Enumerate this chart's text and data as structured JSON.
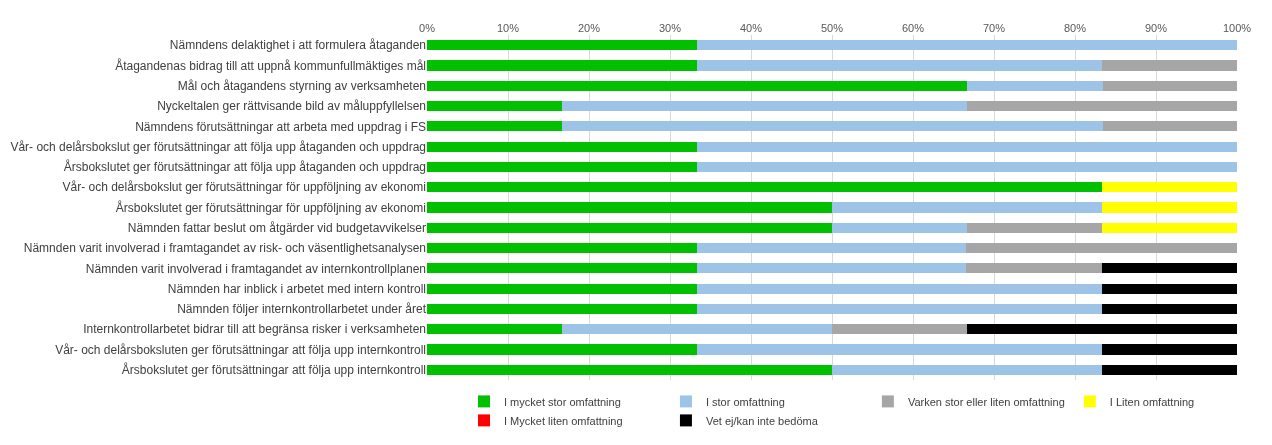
{
  "chart_data": {
    "type": "bar",
    "orientation": "horizontal",
    "stacked": true,
    "categories": [
      "Nämndens delaktighet i att formulera åtaganden",
      "Åtagandenas bidrag till att uppnå kommunfullmäktiges mål",
      "Mål och åtagandens styrning av verksamheten",
      "Nyckeltalen ger rättvisande bild av måluppfyllelsen",
      "Nämndens förutsättningar att arbeta med uppdrag i FS",
      "Vår- och delårsbokslut ger förutsättningar att följa upp åtaganden och uppdrag",
      "Årsbokslutet ger förutsättningar att följa upp åtaganden och uppdrag",
      "Vår- och delårsbokslut ger förutsättningar för uppföljning av ekonomi",
      "Årsbokslutet ger förutsättningar för uppföljning av ekonomi",
      "Nämnden fattar beslut om åtgärder vid budgetavvikelser",
      "Nämnden varit involverad i framtagandet av risk- och väsentlighetsanalysen",
      "Nämnden varit involverad i framtagandet av internkontrollplanen",
      "Nämnden har inblick i arbetet med intern kontroll",
      "Nämnden följer internkontrollarbetet under året",
      "Internkontrollarbetet bidrar till att begränsa risker i verksamheten",
      "Vår- och delårsboksluten ger förutsättningar att följa upp internkontroll",
      "Årsbokslutet ger förutsättningar att följa upp internkontroll"
    ],
    "series": [
      {
        "name": "I mycket stor omfattning",
        "color": "#00c000",
        "values": [
          33.3,
          33.3,
          66.7,
          16.7,
          16.7,
          33.3,
          33.3,
          83.3,
          50,
          50,
          33.3,
          33.3,
          33.3,
          33.3,
          16.7,
          33.3,
          50
        ]
      },
      {
        "name": "I stor omfattning",
        "color": "#9dc3e6",
        "values": [
          66.7,
          50,
          16.7,
          50,
          66.7,
          66.7,
          66.7,
          0,
          33.3,
          16.7,
          33.3,
          33.3,
          50,
          50,
          33.3,
          50,
          33.3
        ]
      },
      {
        "name": "Varken stor eller liten omfattning",
        "color": "#a6a6a6",
        "values": [
          0,
          16.7,
          16.6,
          33.3,
          16.6,
          0,
          0,
          0,
          0,
          16.6,
          33.4,
          16.7,
          0,
          0,
          16.7,
          0,
          0
        ]
      },
      {
        "name": "I Liten omfattning",
        "color": "#ffff00",
        "values": [
          0,
          0,
          0,
          0,
          0,
          0,
          0,
          16.7,
          16.7,
          16.7,
          0,
          0,
          0,
          0,
          0,
          0,
          0
        ]
      },
      {
        "name": "I Mycket liten omfattning",
        "color": "#ff0000",
        "values": [
          0,
          0,
          0,
          0,
          0,
          0,
          0,
          0,
          0,
          0,
          0,
          0,
          0,
          0,
          0,
          0,
          0
        ]
      },
      {
        "name": "Vet ej/kan inte bedöma",
        "color": "#000000",
        "values": [
          0,
          0,
          0,
          0,
          0,
          0,
          0,
          0,
          0,
          0,
          0,
          16.7,
          16.7,
          16.7,
          33.3,
          16.7,
          16.7
        ]
      }
    ],
    "xlim": [
      0,
      100
    ],
    "xticks": [
      {
        "value": 0,
        "label": "0%"
      },
      {
        "value": 10,
        "label": "10%"
      },
      {
        "value": 20,
        "label": "20%"
      },
      {
        "value": 30,
        "label": "30%"
      },
      {
        "value": 40,
        "label": "40%"
      },
      {
        "value": 50,
        "label": "50%"
      },
      {
        "value": 60,
        "label": "60%"
      },
      {
        "value": 70,
        "label": "70%"
      },
      {
        "value": 80,
        "label": "80%"
      },
      {
        "value": 90,
        "label": "90%"
      },
      {
        "value": 100,
        "label": "100%"
      }
    ],
    "grid": "x",
    "legend": "bottom"
  }
}
